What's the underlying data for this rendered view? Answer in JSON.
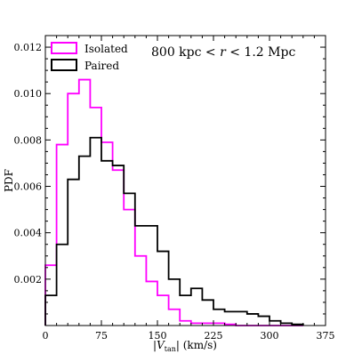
{
  "chart_data": {
    "type": "step-histogram",
    "xlabel": "|V_tan| (km/s)",
    "ylabel": "PDF",
    "xlim": [
      0,
      375
    ],
    "ylim": [
      0,
      0.0125
    ],
    "xticks": [
      0,
      75,
      150,
      225,
      300,
      375
    ],
    "yticks": [
      0.002,
      0.004,
      0.006,
      0.008,
      0.01,
      0.012
    ],
    "ytick_labels": [
      "0.002",
      "0.004",
      "0.006",
      "0.008",
      "0.010",
      "0.012"
    ],
    "annotation": "800 kpc < r < 1.2 Mpc",
    "legend_position": "top-left",
    "bin_edges": [
      0,
      15,
      30,
      45,
      60,
      75,
      90,
      105,
      120,
      135,
      150,
      165,
      180,
      195,
      210,
      225,
      240,
      255,
      270,
      285,
      300,
      315,
      330,
      345
    ],
    "series": [
      {
        "name": "Isolated",
        "color": "#ff00ff",
        "values": [
          0.0026,
          0.0078,
          0.01,
          0.0106,
          0.0094,
          0.0079,
          0.0067,
          0.005,
          0.003,
          0.0019,
          0.0013,
          0.0007,
          0.0002,
          0.0001,
          0.0001,
          0.0001,
          5e-05,
          0.0,
          0.0,
          0.0,
          0.0,
          0.0,
          0.0
        ]
      },
      {
        "name": "Paired",
        "color": "#000000",
        "values": [
          0.0013,
          0.0035,
          0.0063,
          0.0073,
          0.0081,
          0.0071,
          0.0069,
          0.0057,
          0.0043,
          0.0043,
          0.0032,
          0.002,
          0.0013,
          0.0016,
          0.0011,
          0.0007,
          0.0006,
          0.0006,
          0.0005,
          0.0004,
          0.0002,
          0.0001,
          5e-05
        ]
      }
    ]
  }
}
